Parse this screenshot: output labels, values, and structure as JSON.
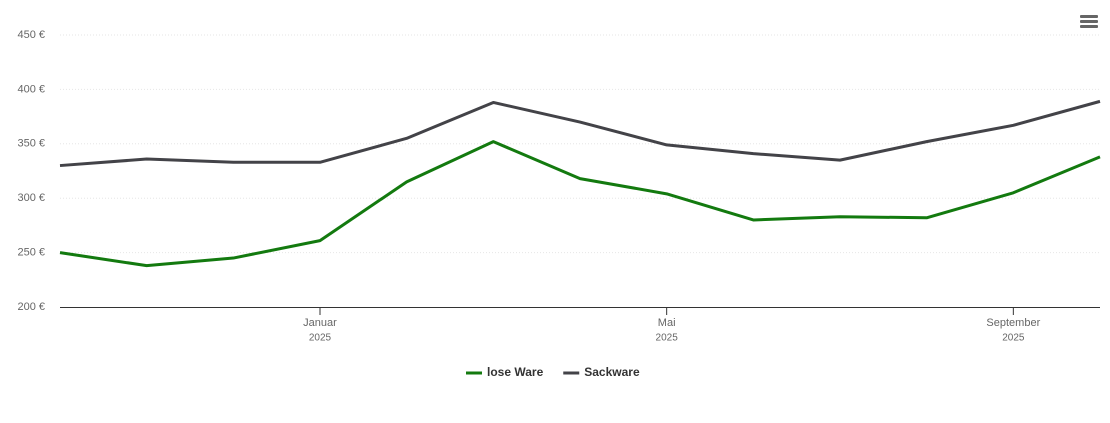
{
  "chart_data": {
    "type": "line",
    "x": [
      "2024-10",
      "2024-11",
      "2024-12",
      "2025-01",
      "2025-02",
      "2025-03",
      "2025-04",
      "2025-05",
      "2025-06",
      "2025-07",
      "2025-08",
      "2025-09",
      "2025-10"
    ],
    "xlim": [
      "2024-10",
      "2025-10"
    ],
    "xticks": [
      {
        "value": "2025-01",
        "label": [
          "Januar",
          "2025"
        ]
      },
      {
        "value": "2025-05",
        "label": [
          "Mai",
          "2025"
        ]
      },
      {
        "value": "2025-09",
        "label": [
          "September",
          "2025"
        ]
      }
    ],
    "ylim": [
      200,
      450
    ],
    "yticks": [
      {
        "value": 200,
        "label": "200 €"
      },
      {
        "value": 250,
        "label": "250 €"
      },
      {
        "value": 300,
        "label": "300 €"
      },
      {
        "value": 350,
        "label": "350 €"
      },
      {
        "value": 400,
        "label": "400 €"
      },
      {
        "value": 450,
        "label": "450 €"
      }
    ],
    "grid": true,
    "legend": "bottom",
    "series": [
      {
        "name": "lose Ware",
        "color": "#137a0f",
        "values": [
          250,
          238,
          245,
          261,
          315,
          352,
          318,
          304,
          280,
          283,
          282,
          305,
          338
        ]
      },
      {
        "name": "Sackware",
        "color": "#434348",
        "values": [
          330,
          336,
          333,
          333,
          355,
          388,
          370,
          349,
          341,
          335,
          352,
          367,
          389
        ]
      }
    ]
  }
}
